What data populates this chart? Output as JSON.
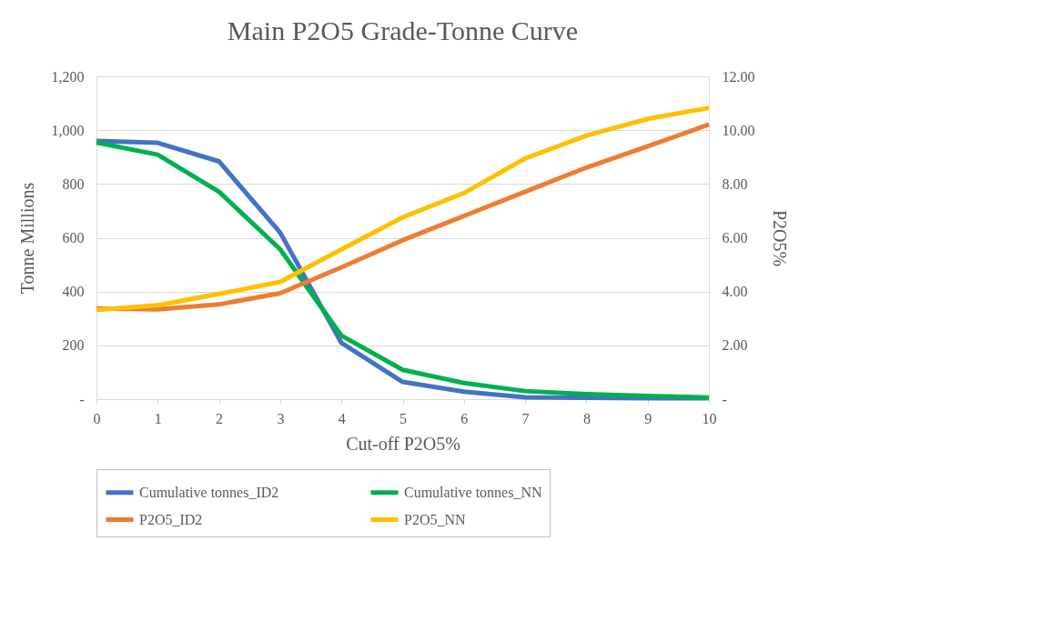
{
  "chart_data": {
    "type": "line",
    "title": "Main P2O5 Grade-Tonne Curve",
    "xlabel": "Cut-off P2O5%",
    "ylabel": "Tonne  Millions",
    "y2label": "P2O5%",
    "categories": [
      "0",
      "1",
      "2",
      "3",
      "4",
      "5",
      "6",
      "7",
      "8",
      "9",
      "10"
    ],
    "series": [
      {
        "name": "Cumulative tonnes_ID2",
        "color": "#4472c4",
        "values": [
          960,
          953,
          884,
          619,
          209,
          64,
          28,
          7,
          5,
          3,
          3
        ]
      },
      {
        "name": "Cumulative tonnes_NN",
        "color": "#00b050",
        "values": [
          954,
          909,
          771,
          557,
          236,
          109,
          60,
          30,
          19,
          12,
          6
        ]
      },
      {
        "name": "P2O5_ID2",
        "color": "#ed7d31",
        "axis": "y2",
        "values": [
          3.37,
          3.34,
          3.52,
          3.94,
          4.9,
          5.91,
          6.81,
          7.71,
          8.61,
          9.4,
          10.21
        ]
      },
      {
        "name": "P2O5_NN",
        "color": "#ffc000",
        "axis": "y2",
        "values": [
          3.32,
          3.49,
          3.91,
          4.36,
          5.57,
          6.76,
          7.66,
          8.95,
          9.8,
          10.42,
          10.83
        ]
      }
    ],
    "ylim": [
      0,
      1200
    ],
    "yticks": [
      {
        "value": 0,
        "label": "-"
      },
      200,
      400,
      600,
      800,
      {
        "value": 1000,
        "label": "1,000"
      },
      {
        "value": 1200,
        "label": "1,200"
      }
    ],
    "y2lim": [
      0,
      12
    ],
    "y2ticks": [
      {
        "value": 0,
        "label": "-"
      },
      {
        "value": 2,
        "label": "2.00"
      },
      {
        "value": 4,
        "label": "4.00"
      },
      {
        "value": 6,
        "label": "6.00"
      },
      {
        "value": 8,
        "label": "8.00"
      },
      {
        "value": 10,
        "label": "10.00"
      },
      {
        "value": 12,
        "label": "12.00"
      }
    ],
    "grid": "y",
    "legend": "bottom",
    "marker": "none",
    "line_style": "solid"
  }
}
